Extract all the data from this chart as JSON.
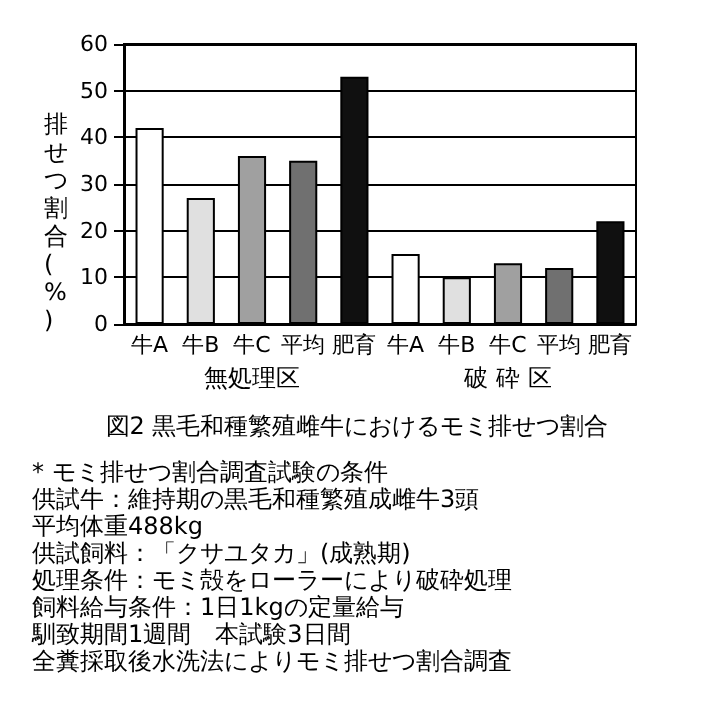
{
  "chart_data": {
    "type": "bar",
    "title": "図2 黒毛和種繁殖雌牛におけるモミ排せつ割合",
    "ylabel": "排せつ割合(%)",
    "categories": [
      "牛A",
      "牛B",
      "牛C",
      "平均",
      "肥育",
      "牛A",
      "牛B",
      "牛C",
      "平均",
      "肥育"
    ],
    "values": [
      42,
      27,
      36,
      35,
      53,
      15,
      10,
      13,
      12,
      22
    ],
    "colors": [
      "#ffffff",
      "#e0e0e0",
      "#a0a0a0",
      "#707070",
      "#101010",
      "#ffffff",
      "#e0e0e0",
      "#a0a0a0",
      "#707070",
      "#101010"
    ],
    "ylim": [
      0,
      60
    ],
    "yticks": [
      0,
      10,
      20,
      30,
      40,
      50,
      60
    ],
    "grid": "y",
    "annotations": [
      "無処理区",
      "破 砕 区",
      "* モミ排せつ割合調査試験の条件",
      "供試牛：維持期の黒毛和種繁殖成雌牛3頭",
      "平均体重488kg",
      "供試飼料：「クサユタカ」(成熟期)",
      "処理条件：モミ殻をローラーにより破砕処理",
      "飼料給与条件：1日1kgの定量給与",
      "馴致期間1週間　本試験3日間",
      "全糞採取後水洗法によりモミ排せつ割合調査"
    ]
  }
}
